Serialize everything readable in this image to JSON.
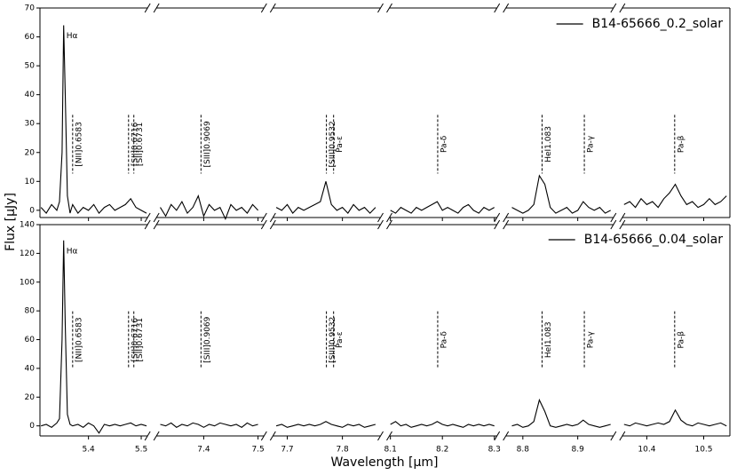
{
  "chart_data": {
    "type": "line",
    "xlabel": "Wavelength [μm]",
    "ylabel": "Flux [μJy]",
    "segments": [
      {
        "xlim": [
          5.308,
          5.512
        ],
        "xticks": [
          5.4,
          5.5
        ],
        "x": [
          5.31,
          5.32,
          5.33,
          5.34,
          5.345,
          5.35,
          5.353,
          5.356,
          5.36,
          5.365,
          5.37,
          5.38,
          5.39,
          5.4,
          5.41,
          5.42,
          5.43,
          5.44,
          5.45,
          5.46,
          5.47,
          5.48,
          5.49,
          5.5,
          5.51
        ]
      },
      {
        "xlim": [
          7.313,
          7.511
        ],
        "xticks": [
          7.4,
          7.5
        ],
        "x": [
          7.32,
          7.33,
          7.34,
          7.35,
          7.36,
          7.37,
          7.38,
          7.39,
          7.4,
          7.41,
          7.42,
          7.43,
          7.44,
          7.45,
          7.46,
          7.47,
          7.48,
          7.49,
          7.5
        ]
      },
      {
        "xlim": [
          7.674,
          7.869
        ],
        "xticks": [
          7.7,
          7.8
        ],
        "x": [
          7.68,
          7.69,
          7.7,
          7.71,
          7.72,
          7.73,
          7.74,
          7.75,
          7.76,
          7.77,
          7.78,
          7.79,
          7.8,
          7.81,
          7.82,
          7.83,
          7.84,
          7.85,
          7.86
        ]
      },
      {
        "xlim": [
          8.098,
          8.305
        ],
        "xticks": [
          8.1,
          8.2,
          8.3
        ],
        "x": [
          8.1,
          8.11,
          8.12,
          8.13,
          8.14,
          8.15,
          8.16,
          8.17,
          8.18,
          8.19,
          8.2,
          8.21,
          8.22,
          8.23,
          8.24,
          8.25,
          8.26,
          8.27,
          8.28,
          8.29,
          8.3
        ]
      },
      {
        "xlim": [
          8.769,
          8.965
        ],
        "xticks": [
          8.8,
          8.9
        ],
        "x": [
          8.78,
          8.79,
          8.8,
          8.81,
          8.82,
          8.83,
          8.84,
          8.85,
          8.86,
          8.87,
          8.88,
          8.89,
          8.9,
          8.91,
          8.92,
          8.93,
          8.94,
          8.95,
          8.96
        ]
      },
      {
        "xlim": [
          10.357,
          10.546
        ],
        "xticks": [
          10.4,
          10.5
        ],
        "x": [
          10.36,
          10.37,
          10.38,
          10.39,
          10.4,
          10.41,
          10.42,
          10.43,
          10.44,
          10.45,
          10.46,
          10.47,
          10.48,
          10.49,
          10.5,
          10.51,
          10.52,
          10.53,
          10.54
        ]
      }
    ],
    "lines": [
      {
        "label": "[NII]0.6583",
        "x": 5.37
      },
      {
        "label": "[SII]0.6716",
        "x": 5.476
      },
      {
        "label": "[SII]0.6731",
        "x": 5.486
      },
      {
        "label": "[SIII]0.9069",
        "x": 7.395
      },
      {
        "label": "[SIII]0.9532",
        "x": 7.771
      },
      {
        "label": "Pa-ε",
        "x": 7.784
      },
      {
        "label": "Pa-δ",
        "x": 8.191
      },
      {
        "label": "HeI1.083",
        "x": 8.835
      },
      {
        "label": "Pa-γ",
        "x": 8.912
      },
      {
        "label": "Pa-β",
        "x": 10.449
      }
    ],
    "peak_label": "Hα",
    "legend": "upper right",
    "panels": [
      {
        "name": "B14-65666_0.2_solar",
        "color": "#000000",
        "ylim": [
          -2.5,
          70
        ],
        "yticks": [
          0,
          10,
          20,
          30,
          40,
          50,
          60,
          70
        ],
        "values": [
          [
            1,
            -1,
            2,
            0,
            3,
            20,
            64,
            40,
            5,
            -1,
            2,
            -1,
            1,
            0,
            2,
            -1,
            1,
            2,
            0,
            1,
            2,
            4,
            1,
            0,
            -1
          ],
          [
            1,
            -2,
            2,
            0,
            3,
            -1,
            1,
            5,
            -2,
            2,
            0,
            1,
            -3,
            2,
            0,
            1,
            -1,
            2,
            0
          ],
          [
            1,
            0,
            2,
            -1,
            1,
            0,
            1,
            2,
            3,
            10,
            2,
            0,
            1,
            -1,
            2,
            0,
            1,
            -1,
            1
          ],
          [
            0,
            -1,
            1,
            0,
            -1,
            1,
            0,
            1,
            2,
            3,
            0,
            1,
            0,
            -1,
            1,
            2,
            0,
            -1,
            1,
            0,
            1
          ],
          [
            1,
            0,
            -1,
            0,
            2,
            12,
            9,
            1,
            -1,
            0,
            1,
            -1,
            0,
            3,
            1,
            0,
            1,
            -1,
            0
          ],
          [
            2,
            3,
            1,
            4,
            2,
            3,
            1,
            4,
            6,
            9,
            5,
            2,
            3,
            1,
            2,
            4,
            2,
            3,
            5
          ]
        ]
      },
      {
        "name": "B14-65666_0.04_solar",
        "color": "#000000",
        "ylim": [
          -7,
          140
        ],
        "yticks": [
          0,
          20,
          40,
          60,
          80,
          100,
          120,
          140
        ],
        "values": [
          [
            0,
            1,
            -1,
            2,
            5,
            60,
            129,
            70,
            8,
            1,
            0,
            1,
            -1,
            2,
            0,
            -5,
            1,
            0,
            1,
            0,
            1,
            2,
            0,
            1,
            0
          ],
          [
            1,
            0,
            2,
            -1,
            1,
            0,
            2,
            1,
            -1,
            1,
            0,
            2,
            1,
            0,
            1,
            -1,
            2,
            0,
            1
          ],
          [
            0,
            1,
            -1,
            0,
            1,
            0,
            1,
            0,
            1,
            3,
            1,
            0,
            -1,
            1,
            0,
            1,
            -1,
            0,
            1
          ],
          [
            1,
            3,
            0,
            1,
            -1,
            0,
            1,
            0,
            1,
            3,
            1,
            0,
            1,
            0,
            -1,
            1,
            0,
            1,
            0,
            1,
            0
          ],
          [
            0,
            1,
            -1,
            0,
            3,
            18,
            10,
            0,
            -1,
            0,
            1,
            0,
            1,
            4,
            1,
            0,
            -1,
            0,
            1
          ],
          [
            1,
            0,
            2,
            1,
            0,
            1,
            2,
            1,
            3,
            11,
            4,
            1,
            0,
            2,
            1,
            0,
            1,
            2,
            0
          ]
        ]
      }
    ]
  }
}
